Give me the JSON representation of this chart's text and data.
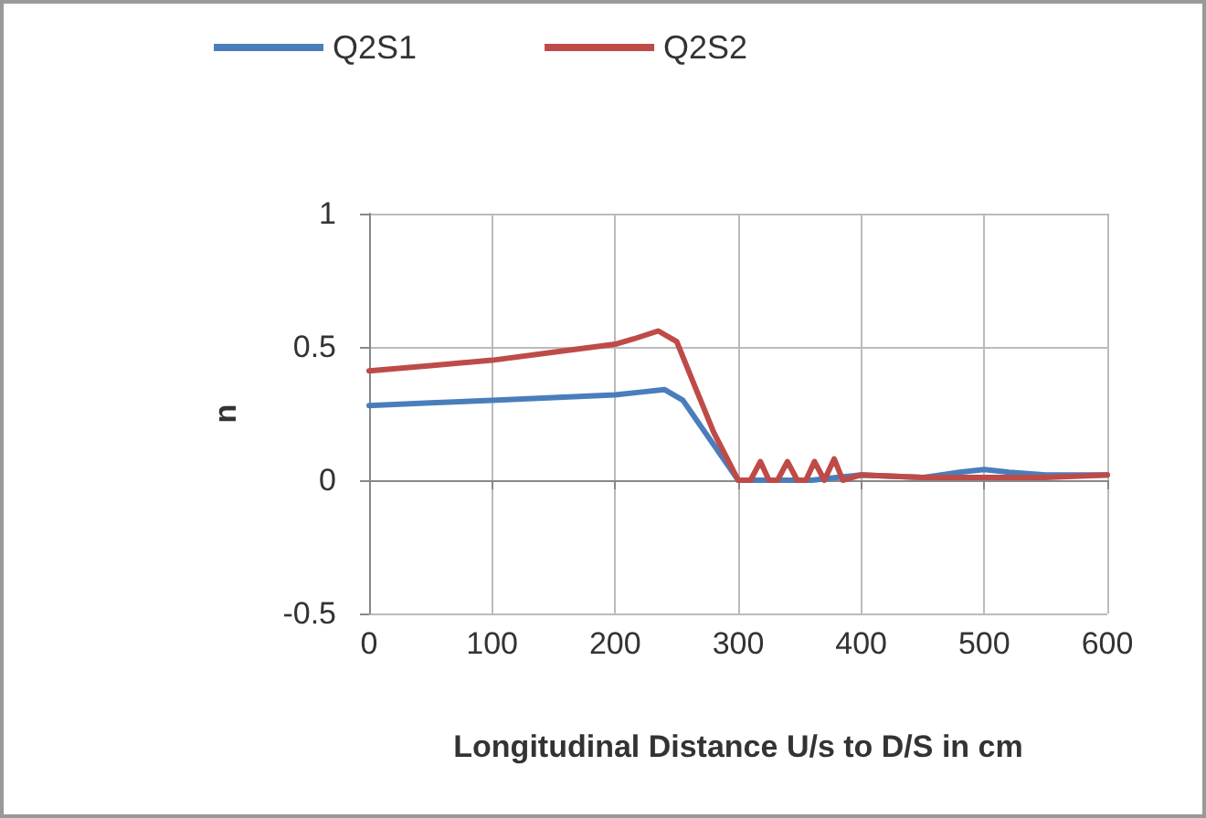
{
  "chart_data": {
    "type": "line",
    "xlabel": "Longitudinal Distance U/s to D/S in cm",
    "ylabel": "n",
    "xlim": [
      0,
      600
    ],
    "xticks": [
      0,
      100,
      200,
      300,
      400,
      500,
      600
    ],
    "ylim": [
      -0.5,
      1
    ],
    "yticks": [
      -0.5,
      0,
      0.5,
      1
    ],
    "grid": true,
    "legend": "top",
    "marker": "none",
    "series": [
      {
        "name": "Q2S1",
        "color": "#4a7ebb",
        "x": [
          0,
          50,
          100,
          150,
          200,
          220,
          240,
          255,
          270,
          285,
          300,
          320,
          340,
          360,
          380,
          400,
          450,
          480,
          500,
          520,
          550,
          600
        ],
        "values": [
          0.28,
          0.29,
          0.3,
          0.31,
          0.32,
          0.33,
          0.34,
          0.3,
          0.2,
          0.1,
          0.0,
          0.0,
          0.0,
          0.0,
          0.01,
          0.02,
          0.01,
          0.03,
          0.04,
          0.03,
          0.02,
          0.02
        ]
      },
      {
        "name": "Q2S2",
        "color": "#be4b48",
        "x": [
          0,
          50,
          100,
          150,
          200,
          215,
          235,
          250,
          265,
          280,
          300,
          310,
          318,
          325,
          332,
          340,
          348,
          355,
          362,
          370,
          378,
          385,
          400,
          450,
          500,
          550,
          600
        ],
        "values": [
          0.41,
          0.43,
          0.45,
          0.48,
          0.51,
          0.53,
          0.56,
          0.52,
          0.35,
          0.18,
          0.0,
          0.0,
          0.07,
          0.0,
          0.0,
          0.07,
          0.0,
          0.0,
          0.07,
          0.0,
          0.08,
          0.0,
          0.02,
          0.01,
          0.01,
          0.01,
          0.02
        ]
      }
    ]
  }
}
